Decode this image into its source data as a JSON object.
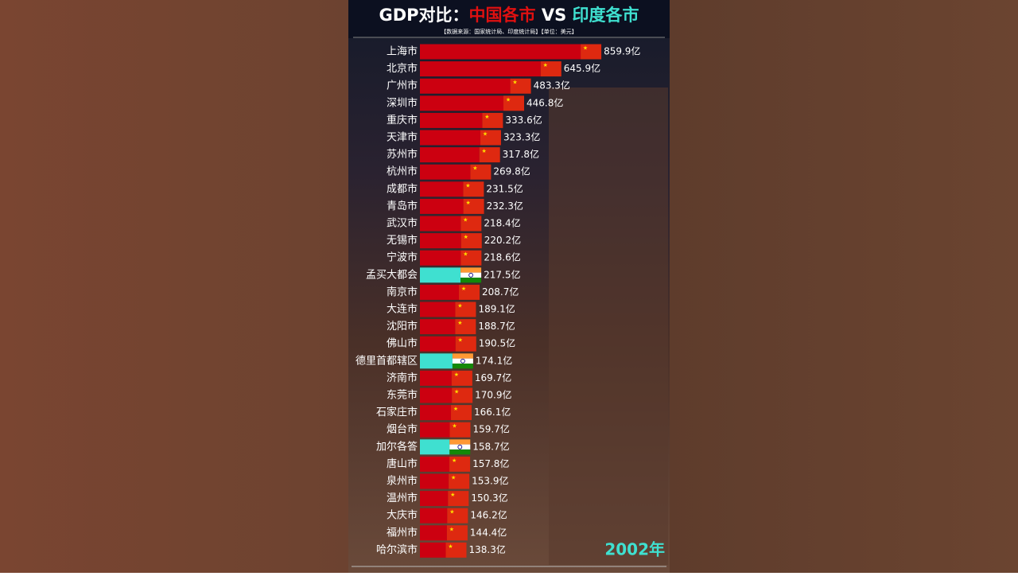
{
  "chart_data": {
    "type": "bar",
    "orientation": "horizontal",
    "title_parts": [
      "GDP对比：",
      "中国各市",
      " VS ",
      "印度各市"
    ],
    "title_colors": [
      "#ffffff",
      "#e01010",
      "#ffffff",
      "#3fe0d0"
    ],
    "subtitle": "【数据来源：国家统计局、印度统计局】【单位：美元】",
    "year_label": "2002年",
    "categories": [
      "上海市",
      "北京市",
      "广州市",
      "深圳市",
      "重庆市",
      "天津市",
      "苏州市",
      "杭州市",
      "成都市",
      "青岛市",
      "武汉市",
      "无锡市",
      "宁波市",
      "孟买大都会",
      "南京市",
      "大连市",
      "沈阳市",
      "佛山市",
      "德里首都辖区",
      "济南市",
      "东莞市",
      "石家庄市",
      "烟台市",
      "加尔各答",
      "唐山市",
      "泉州市",
      "温州市",
      "大庆市",
      "福州市",
      "哈尔滨市"
    ],
    "values": [
      859.9,
      645.9,
      483.3,
      446.8,
      333.6,
      323.3,
      317.8,
      269.8,
      231.5,
      232.3,
      218.4,
      220.2,
      218.6,
      217.5,
      208.7,
      189.1,
      188.7,
      190.5,
      174.1,
      169.7,
      170.9,
      166.1,
      159.7,
      158.7,
      157.8,
      153.9,
      150.3,
      146.2,
      144.4,
      138.3
    ],
    "value_labels": [
      "859.9亿",
      "645.9亿",
      "483.3亿",
      "446.8亿",
      "333.6亿",
      "323.3亿",
      "317.8亿",
      "269.8亿",
      "231.5亿",
      "232.3亿",
      "218.4亿",
      "220.2亿",
      "218.6亿",
      "217.5亿",
      "208.7亿",
      "189.1亿",
      "188.7亿",
      "190.5亿",
      "174.1亿",
      "169.7亿",
      "170.9亿",
      "166.1亿",
      "159.7亿",
      "158.7亿",
      "157.8亿",
      "153.9亿",
      "150.3亿",
      "146.2亿",
      "144.4亿",
      "138.3亿"
    ],
    "groups": [
      0,
      0,
      0,
      0,
      0,
      0,
      0,
      0,
      0,
      0,
      0,
      0,
      0,
      1,
      0,
      0,
      0,
      0,
      1,
      0,
      0,
      0,
      0,
      1,
      0,
      0,
      0,
      0,
      0,
      0
    ],
    "group_colors": [
      "#cc0010",
      "#3fe0d0"
    ],
    "xlim": [
      0,
      1000
    ]
  }
}
